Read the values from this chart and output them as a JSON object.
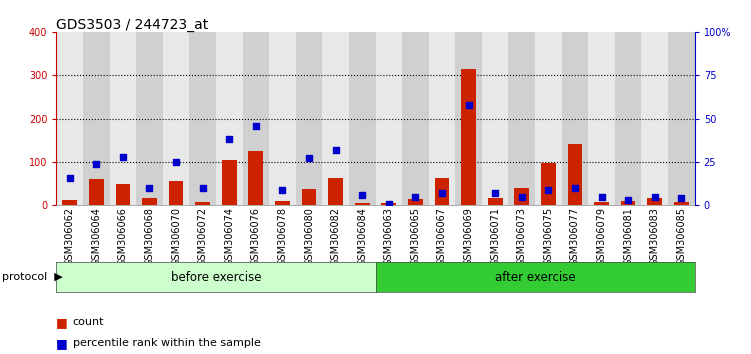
{
  "title": "GDS3503 / 244723_at",
  "categories": [
    "GSM306062",
    "GSM306064",
    "GSM306066",
    "GSM306068",
    "GSM306070",
    "GSM306072",
    "GSM306074",
    "GSM306076",
    "GSM306078",
    "GSM306080",
    "GSM306082",
    "GSM306084",
    "GSM306063",
    "GSM306065",
    "GSM306067",
    "GSM306069",
    "GSM306071",
    "GSM306073",
    "GSM306075",
    "GSM306077",
    "GSM306079",
    "GSM306081",
    "GSM306083",
    "GSM306085"
  ],
  "counts": [
    12,
    60,
    50,
    18,
    57,
    8,
    105,
    125,
    10,
    38,
    62,
    5,
    5,
    15,
    62,
    315,
    18,
    40,
    98,
    142,
    8,
    10,
    18,
    8
  ],
  "percentile_pct": [
    16,
    24,
    28,
    10,
    25,
    10,
    38,
    46,
    9,
    27,
    32,
    6,
    1,
    5,
    7,
    58,
    7,
    5,
    9,
    10,
    5,
    3,
    5,
    4
  ],
  "before_n": 12,
  "after_n": 12,
  "before_label": "before exercise",
  "after_label": "after exercise",
  "protocol_label": "protocol",
  "bar_color": "#cc2200",
  "dot_color": "#0000cc",
  "before_bg": "#ccffcc",
  "after_bg": "#33cc33",
  "col_bg_even": "#e8e8e8",
  "col_bg_odd": "#d0d0d0",
  "ylim_left": [
    0,
    400
  ],
  "ylim_right": [
    0,
    100
  ],
  "yticks_left": [
    0,
    100,
    200,
    300,
    400
  ],
  "yticks_right": [
    0,
    25,
    50,
    75,
    100
  ],
  "ytick_labels_right": [
    "0",
    "25",
    "50",
    "75",
    "100%"
  ],
  "grid_vals": [
    100,
    200,
    300
  ],
  "legend_count_label": "count",
  "legend_pct_label": "percentile rank within the sample",
  "title_fontsize": 10,
  "tick_fontsize": 7,
  "left_tick_color": "#cc0000",
  "right_tick_color": "#0000cc"
}
